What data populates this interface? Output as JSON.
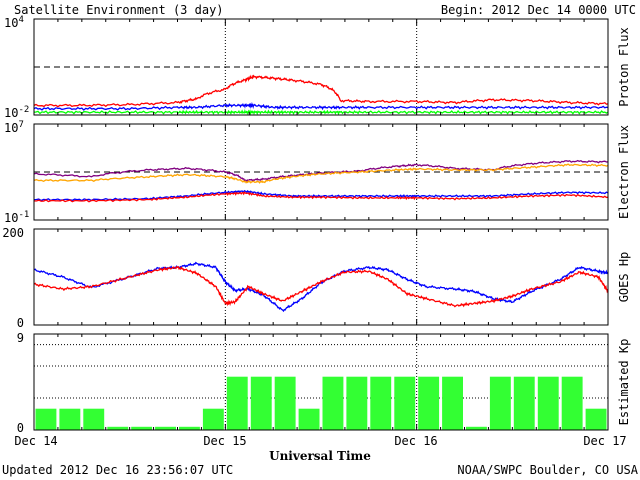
{
  "header": {
    "title": "Satellite Environment (3 day)",
    "begin": "Begin:  2012 Dec 14 0000 UTC"
  },
  "footer": {
    "updated": "Updated 2012 Dec 16 23:56:07 UTC",
    "credit": "NOAA/SWPC Boulder, CO USA"
  },
  "xaxis": {
    "label": "Universal Time",
    "ticks": [
      "Dec 14",
      "Dec 15",
      "Dec 16",
      "Dec 17"
    ]
  },
  "colors": {
    "red": "#ff0000",
    "blue": "#0000ff",
    "green": "#00ff00",
    "purple": "#800080",
    "orange": "#ffa500",
    "kp_bar": "#33ff33"
  },
  "chart_data": [
    {
      "type": "line",
      "name": "proton",
      "ylabel": "Proton Flux",
      "yscale": "log",
      "ylim": [
        0.01,
        10000
      ],
      "ytick_labels": [
        {
          "base": "10",
          "exp": "4",
          "value": 10000
        },
        {
          "base": "10",
          "exp": "-2",
          "value": 0.01
        }
      ],
      "threshold": 10,
      "x_days": [
        0,
        0.25,
        0.5,
        0.75,
        0.85,
        1.0,
        1.1,
        1.15,
        1.25,
        1.35,
        1.5,
        1.6,
        1.75,
        2.0,
        2.2,
        2.4,
        2.6,
        2.8,
        3.0
      ],
      "series": [
        {
          "color": "red",
          "values": [
            0.04,
            0.04,
            0.045,
            0.06,
            0.1,
            0.4,
            1.5,
            2.5,
            2.0,
            1.5,
            0.8,
            0.08,
            0.07,
            0.07,
            0.06,
            0.09,
            0.08,
            0.06,
            0.05
          ]
        },
        {
          "color": "blue",
          "values": [
            0.025,
            0.025,
            0.025,
            0.03,
            0.03,
            0.04,
            0.04,
            0.04,
            0.03,
            0.03,
            0.03,
            0.03,
            0.03,
            0.03,
            0.03,
            0.03,
            0.03,
            0.03,
            0.03
          ]
        },
        {
          "color": "green",
          "values": [
            0.015,
            0.015,
            0.015,
            0.015,
            0.015,
            0.015,
            0.015,
            0.015,
            0.015,
            0.015,
            0.015,
            0.015,
            0.015,
            0.015,
            0.015,
            0.015,
            0.015,
            0.015,
            0.015
          ]
        }
      ]
    },
    {
      "type": "line",
      "name": "electron",
      "ylabel": "Electron Flux",
      "yscale": "log",
      "ylim": [
        0.1,
        10000000
      ],
      "ytick_labels": [
        {
          "base": "10",
          "exp": "7",
          "value": 10000000
        },
        {
          "base": "10",
          "exp": "-1",
          "value": 0.1
        }
      ],
      "threshold": 1000,
      "x_days": [
        0,
        0.3,
        0.6,
        0.8,
        1.0,
        1.1,
        1.2,
        1.35,
        1.5,
        1.7,
        1.9,
        2.0,
        2.2,
        2.4,
        2.6,
        2.8,
        3.0
      ],
      "series": [
        {
          "color": "purple",
          "values": [
            700,
            400,
            1500,
            2000,
            1000,
            200,
            250,
            500,
            800,
            1200,
            3000,
            4000,
            2000,
            1500,
            5000,
            8000,
            7000
          ]
        },
        {
          "color": "orange",
          "values": [
            200,
            200,
            400,
            600,
            400,
            150,
            150,
            400,
            700,
            1000,
            1500,
            1800,
            1500,
            1500,
            2500,
            4000,
            3500
          ]
        },
        {
          "color": "blue",
          "values": [
            5,
            5,
            6,
            10,
            20,
            25,
            15,
            10,
            10,
            10,
            10,
            10,
            10,
            10,
            15,
            20,
            18
          ]
        },
        {
          "color": "red",
          "values": [
            4,
            4,
            5,
            8,
            15,
            18,
            10,
            8,
            8,
            7,
            7,
            7,
            6,
            7,
            10,
            12,
            8
          ]
        }
      ]
    },
    {
      "type": "line",
      "name": "goes_hp",
      "ylabel": "GOES Hp",
      "yscale": "linear",
      "ylim": [
        0,
        200
      ],
      "ytick_labels": [
        {
          "base": "200",
          "exp": "",
          "value": 200
        },
        {
          "base": "0",
          "exp": "",
          "value": 0
        }
      ],
      "x_days": [
        0,
        0.15,
        0.3,
        0.5,
        0.65,
        0.75,
        0.85,
        0.95,
        1.0,
        1.05,
        1.12,
        1.2,
        1.3,
        1.4,
        1.5,
        1.62,
        1.75,
        1.85,
        1.95,
        2.05,
        2.2,
        2.3,
        2.4,
        2.5,
        2.6,
        2.75,
        2.85,
        2.95,
        3.0
      ],
      "series": [
        {
          "color": "blue",
          "values": [
            115,
            100,
            78,
            100,
            118,
            120,
            128,
            120,
            90,
            72,
            75,
            62,
            30,
            55,
            88,
            112,
            120,
            115,
            95,
            80,
            75,
            70,
            55,
            48,
            70,
            95,
            120,
            112,
            108
          ]
        },
        {
          "color": "red",
          "values": [
            85,
            75,
            80,
            100,
            115,
            120,
            108,
            80,
            45,
            48,
            80,
            65,
            50,
            70,
            90,
            110,
            112,
            95,
            65,
            55,
            40,
            45,
            50,
            60,
            75,
            90,
            110,
            100,
            70
          ]
        }
      ]
    },
    {
      "type": "bar",
      "name": "kp",
      "ylabel": "Estimated Kp",
      "ylim": [
        0,
        9
      ],
      "ytick_labels": [
        {
          "base": "9",
          "exp": "",
          "value": 9
        },
        {
          "base": "0",
          "exp": "",
          "value": 0
        }
      ],
      "gridlines": [
        3,
        6,
        8
      ],
      "values": [
        2,
        2,
        2,
        0.3,
        0.3,
        0.3,
        0.3,
        2,
        5,
        5,
        5,
        2,
        5,
        5,
        5,
        5,
        5,
        5,
        0.3,
        5,
        5,
        5,
        5,
        2
      ]
    }
  ]
}
